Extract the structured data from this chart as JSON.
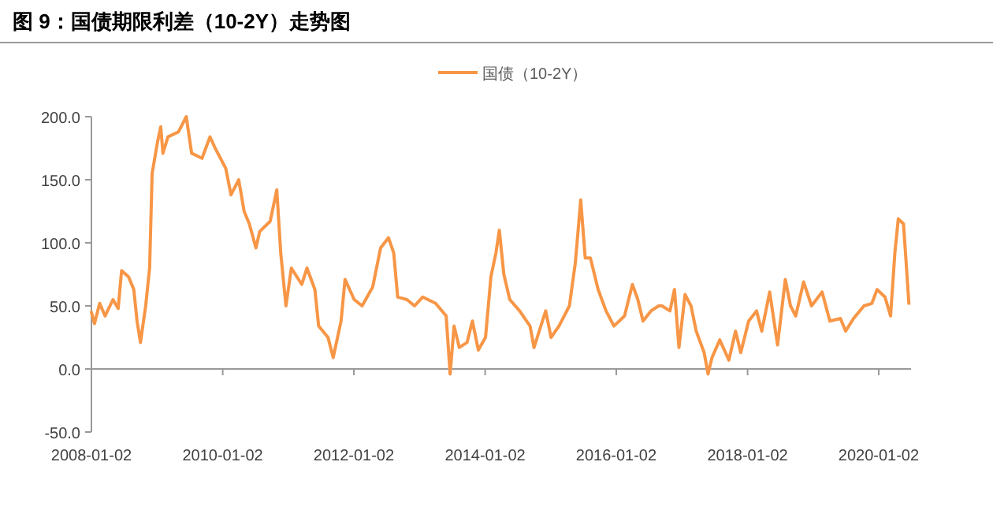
{
  "chart_data": {
    "type": "line",
    "title": "图 9：国债期限利差（10-2Y）走势图",
    "legend": "top",
    "x": [
      "2008-01-02",
      "2008-01-19",
      "2008-02-17",
      "2008-03-18",
      "2008-05-01",
      "2008-05-30",
      "2008-06-18",
      "2008-07-27",
      "2008-08-25",
      "2008-09-12",
      "2008-10-01",
      "2008-10-30",
      "2008-11-21",
      "2008-12-05",
      "2009-01-04",
      "2009-01-22",
      "2009-02-03",
      "2009-03-03",
      "2009-05-01",
      "2009-06-13",
      "2009-07-13",
      "2009-09-09",
      "2009-10-23",
      "2009-11-21",
      "2010-01-19",
      "2010-02-17",
      "2010-04-01",
      "2010-05-01",
      "2010-05-30",
      "2010-07-06",
      "2010-07-27",
      "2010-09-23",
      "2010-10-30",
      "2010-11-21",
      "2010-12-20",
      "2011-01-19",
      "2011-03-18",
      "2011-04-16",
      "2011-05-30",
      "2011-06-20",
      "2011-08-11",
      "2011-09-09",
      "2011-10-23",
      "2011-11-14",
      "2012-01-04",
      "2012-02-17",
      "2012-04-16",
      "2012-05-30",
      "2012-07-13",
      "2012-08-11",
      "2012-09-02",
      "2012-10-23",
      "2012-12-05",
      "2013-01-19",
      "2013-04-01",
      "2013-05-30",
      "2013-06-21",
      "2013-07-13",
      "2013-08-11",
      "2013-09-23",
      "2013-10-23",
      "2013-11-25",
      "2014-01-04",
      "2014-02-03",
      "2014-03-03",
      "2014-03-22",
      "2014-04-16",
      "2014-05-19",
      "2014-07-13",
      "2014-09-09",
      "2014-10-01",
      "2014-10-30",
      "2014-12-05",
      "2015-01-04",
      "2015-02-17",
      "2015-04-16",
      "2015-05-19",
      "2015-06-18",
      "2015-07-13",
      "2015-08-11",
      "2015-09-23",
      "2015-11-06",
      "2015-12-20",
      "2016-02-17",
      "2016-04-01",
      "2016-05-01",
      "2016-05-30",
      "2016-07-13",
      "2016-08-25",
      "2016-09-12",
      "2016-10-27",
      "2016-11-21",
      "2016-12-16",
      "2017-01-19",
      "2017-02-21",
      "2017-03-22",
      "2017-05-05",
      "2017-05-27",
      "2017-06-18",
      "2017-07-31",
      "2017-09-20",
      "2017-10-27",
      "2017-11-25",
      "2018-01-08",
      "2018-02-21",
      "2018-03-22",
      "2018-05-05",
      "2018-06-18",
      "2018-07-31",
      "2018-08-29",
      "2018-09-27",
      "2018-11-10",
      "2018-12-24",
      "2019-02-21",
      "2019-04-05",
      "2019-06-03",
      "2019-07-02",
      "2019-08-15",
      "2019-10-12",
      "2019-11-25",
      "2019-12-24",
      "2020-02-06",
      "2020-03-08",
      "2020-04-01",
      "2020-04-20",
      "2020-05-19",
      "2020-06-03",
      "2020-06-18"
    ],
    "series": [
      {
        "name": "国债（10-2Y）",
        "color": "#f79646",
        "values": [
          45,
          36,
          52,
          42,
          55,
          48,
          78,
          73,
          63,
          38,
          21,
          50,
          80,
          155,
          180,
          192,
          171,
          184,
          188,
          200,
          171,
          167,
          184,
          175,
          159,
          138,
          150,
          125,
          115,
          96,
          109,
          117,
          142,
          92,
          50,
          80,
          67,
          80,
          63,
          34,
          25,
          9,
          38,
          71,
          55,
          50,
          65,
          96,
          104,
          92,
          57,
          55,
          50,
          57,
          52,
          42,
          -4,
          34,
          17,
          21,
          38,
          15,
          25,
          73,
          92,
          110,
          75,
          55,
          46,
          34,
          17,
          30,
          46,
          25,
          34,
          50,
          84,
          134,
          88,
          88,
          63,
          46,
          34,
          42,
          67,
          55,
          38,
          46,
          50,
          50,
          46,
          63,
          17,
          59,
          50,
          30,
          13,
          -4,
          9,
          23,
          7,
          30,
          13,
          38,
          46,
          30,
          61,
          19,
          71,
          50,
          42,
          69,
          50,
          61,
          38,
          40,
          30,
          40,
          50,
          52,
          63,
          57,
          42,
          92,
          119,
          115,
          84,
          52
        ]
      }
    ],
    "xlim": [
      "2008-01-02",
      "2020-06-30"
    ],
    "xticks": [
      "2008-01-02",
      "2010-01-02",
      "2012-01-02",
      "2014-01-02",
      "2016-01-02",
      "2018-01-02",
      "2020-01-02"
    ],
    "ylim": [
      -50,
      200
    ],
    "yticks": [
      {
        "value": -50,
        "label": "-50.0"
      },
      {
        "value": 0,
        "label": "0.0"
      },
      {
        "value": 50,
        "label": "50.0"
      },
      {
        "value": 100,
        "label": "100.0"
      },
      {
        "value": 150,
        "label": "150.0"
      },
      {
        "value": 200,
        "label": "200.0"
      }
    ]
  }
}
